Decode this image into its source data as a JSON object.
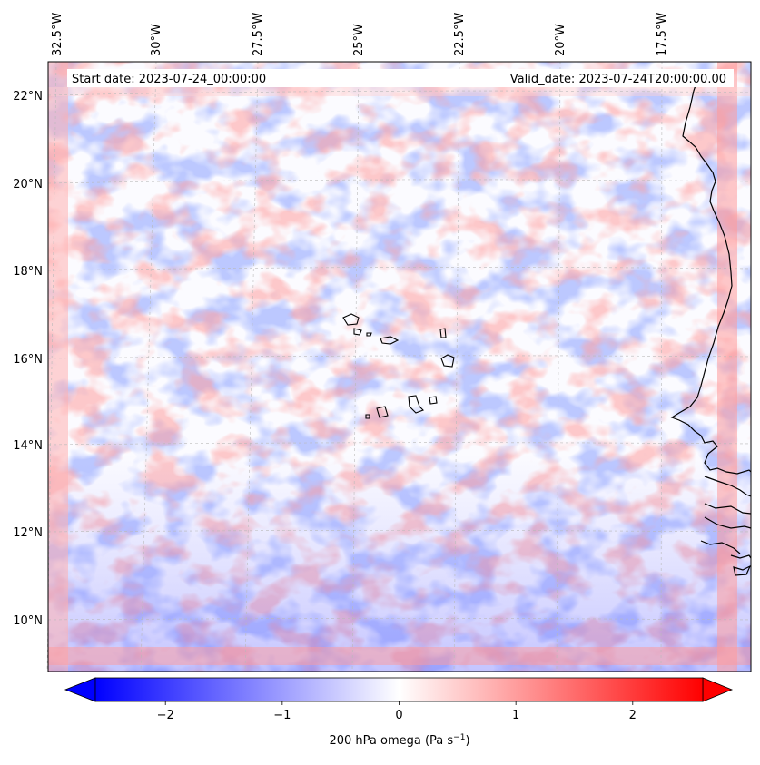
{
  "map": {
    "start_date": "Start date: 2023-07-24_00:00:00",
    "valid_date": "Valid_date: 2023-07-24T20:00:00.00",
    "lon_labels": [
      "32.5°W",
      "30°W",
      "27.5°W",
      "25°W",
      "22.5°W",
      "20°W",
      "17.5°W"
    ],
    "lat_labels": [
      "22°N",
      "20°N",
      "18°N",
      "16°N",
      "14°N",
      "12°N",
      "10°N"
    ]
  },
  "colorbar": {
    "label_main": "200 hPa omega (Pa s",
    "label_exp": "−1",
    "label_close": ")",
    "ticks": [
      "−2",
      "−1",
      "0",
      "1",
      "2"
    ],
    "min": -2.6,
    "max": 2.6,
    "colors": {
      "neg": "#0000ff",
      "mid": "#ffffff",
      "pos": "#ff0000"
    }
  }
}
